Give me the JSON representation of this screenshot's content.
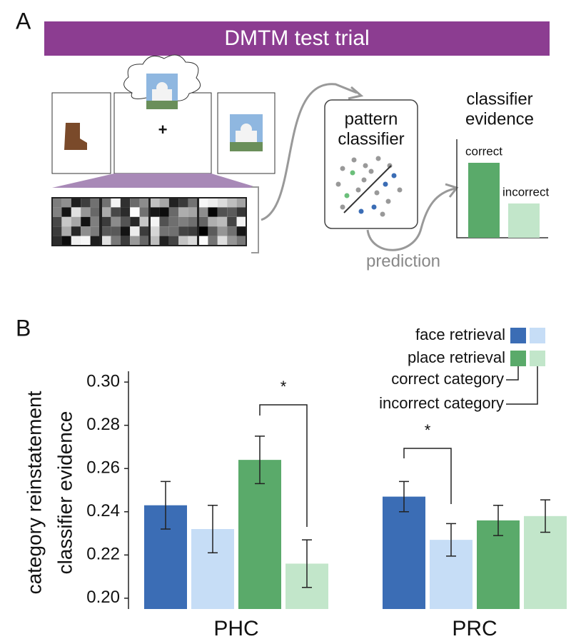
{
  "panel_a": {
    "label": "A",
    "banner": "DMTM test trial",
    "fixation": "+",
    "classifier_title": [
      "pattern",
      "classifier"
    ],
    "prediction": "prediction",
    "evidence_title": [
      "classifier",
      "evidence"
    ],
    "evidence_bars": [
      "correct",
      "incorrect"
    ]
  },
  "chart_data": {
    "type": "bar",
    "panel_label": "B",
    "ylabel": [
      "category reinstatement",
      "classifier evidence"
    ],
    "categories": [
      "PHC",
      "PRC"
    ],
    "series": [
      {
        "color": "#3b6db5",
        "values": [
          0.243,
          0.247
        ],
        "errors": [
          0.011,
          0.007
        ]
      },
      {
        "color": "#c6ddf6",
        "values": [
          0.232,
          0.227
        ],
        "errors": [
          0.011,
          0.0075
        ]
      },
      {
        "color": "#5aaa6a",
        "values": [
          0.264,
          0.236
        ],
        "errors": [
          0.011,
          0.007
        ]
      },
      {
        "color": "#c2e6ca",
        "values": [
          0.216,
          0.238
        ],
        "errors": [
          0.011,
          0.0075
        ]
      }
    ],
    "ylim": [
      0.195,
      0.305
    ],
    "yticks": [
      {
        "value": 0.2,
        "label": "0.20"
      },
      0.22,
      0.24,
      0.26,
      0.28,
      {
        "value": 0.3,
        "label": "0.30"
      }
    ],
    "legend": {
      "rows": [
        "face retrieval",
        "place retrieval"
      ],
      "columns": [
        "correct category",
        "incorrect category"
      ]
    },
    "annotations": [
      "*",
      "*"
    ]
  }
}
